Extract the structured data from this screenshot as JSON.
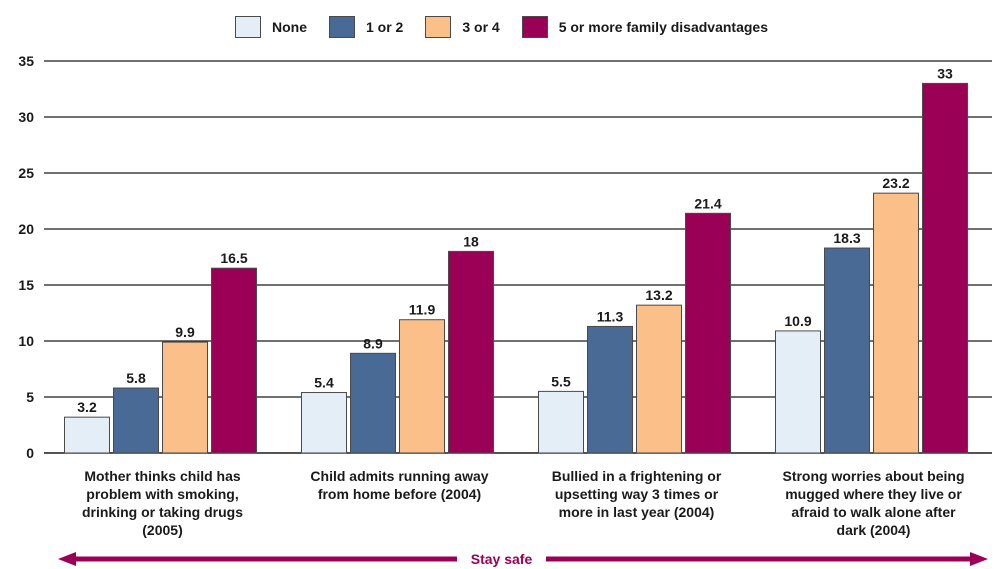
{
  "chart_data": {
    "type": "bar",
    "categories": [
      "Mother thinks child has problem with smoking, drinking or taking drugs (2005)",
      "Child admits running away from home before (2004)",
      "Bullied in a frightening or upsetting way 3 times or more in last year (2004)",
      "Strong worries about being mugged where they live or afraid to walk alone after dark (2004)"
    ],
    "category_lines": [
      [
        "Mother thinks child has",
        "problem with smoking,",
        "drinking or taking drugs",
        "(2005)"
      ],
      [
        "Child admits running away",
        "from home before (2004)"
      ],
      [
        "Bullied in a frightening or",
        "upsetting way 3 times or",
        "more in last year (2004)"
      ],
      [
        "Strong worries about being",
        "mugged where they live or",
        "afraid to walk alone after",
        "dark (2004)"
      ]
    ],
    "series": [
      {
        "name": "None",
        "color": "#e4eef6",
        "values": [
          3.2,
          5.4,
          5.5,
          10.9
        ]
      },
      {
        "name": "1 or 2",
        "color": "#4a6a96",
        "values": [
          5.8,
          8.9,
          11.3,
          18.3
        ]
      },
      {
        "name": "3 or 4",
        "color": "#fbc08a",
        "values": [
          9.9,
          11.9,
          13.2,
          23.2
        ]
      },
      {
        "name": "5 or more family disadvantages",
        "color": "#9b0057",
        "values": [
          16.5,
          18,
          21.4,
          33
        ]
      }
    ],
    "ylim": [
      0,
      35
    ],
    "yticks": [
      0,
      5,
      10,
      15,
      20,
      25,
      30,
      35
    ],
    "grid": true,
    "legend_position": "top-center",
    "xlabel": "",
    "ylabel": "",
    "bracket_label": "Stay safe",
    "bracket_color": "#9b0057"
  }
}
